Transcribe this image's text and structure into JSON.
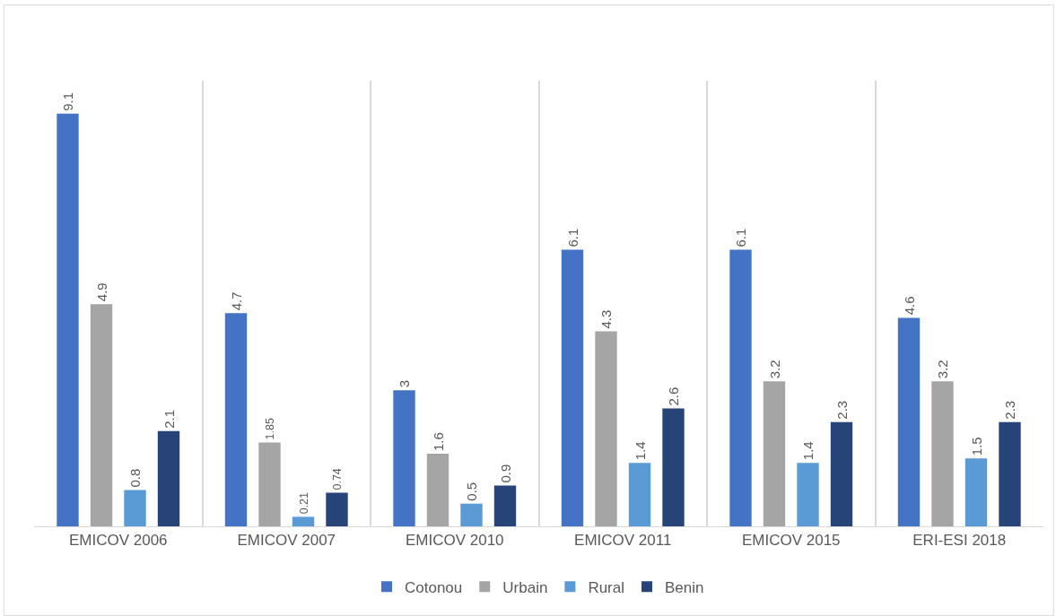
{
  "chart_data": {
    "type": "bar",
    "categories": [
      "EMICOV 2006",
      "EMICOV 2007",
      "EMICOV 2010",
      "EMICOV 2011",
      "EMICOV 2015",
      "ERI-ESI 2018"
    ],
    "series": [
      {
        "name": "Cotonou",
        "color": "#4472c4",
        "values": [
          9.1,
          4.7,
          3,
          6.1,
          6.1,
          4.6
        ]
      },
      {
        "name": "Urbain",
        "color": "#a5a5a5",
        "values": [
          4.9,
          1.85,
          1.6,
          4.3,
          3.2,
          3.2
        ]
      },
      {
        "name": "Rural",
        "color": "#5b9bd5",
        "values": [
          0.8,
          0.21,
          0.5,
          1.4,
          1.4,
          1.5
        ]
      },
      {
        "name": "Benin",
        "color": "#264478",
        "values": [
          2.1,
          0.74,
          0.9,
          2.6,
          2.3,
          2.3
        ]
      }
    ],
    "data_labels": true,
    "grid": "x",
    "legend": "bottom"
  }
}
